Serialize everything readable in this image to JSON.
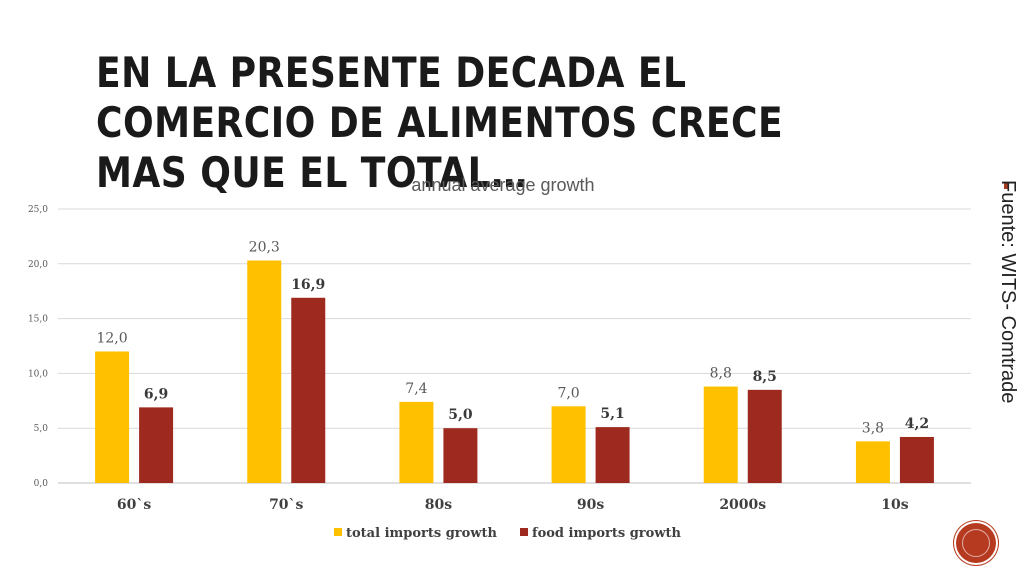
{
  "slide": {
    "title": "EN LA PRESENTE DECADA EL COMERCIO DE ALIMENTOS CRECE MAS QUE EL TOTAL…",
    "source_note": "Fuente: WITS- Comtrade"
  },
  "colors": {
    "total": "#FFC000",
    "food": "#9E2A1F",
    "grid": "#d9d9d9",
    "accent": "#b63a20"
  },
  "chart_data": {
    "type": "bar",
    "title": "annual average growth",
    "categories": [
      "60`s",
      "70`s",
      "80s",
      "90s",
      "2000s",
      "10s"
    ],
    "series": [
      {
        "name": "total imports growth",
        "values": [
          12.0,
          20.3,
          7.4,
          7.0,
          8.8,
          3.8
        ],
        "labels": [
          "12,0",
          "20,3",
          "7,4",
          "7,0",
          "8,8",
          "3,8"
        ]
      },
      {
        "name": "food imports growth",
        "values": [
          6.9,
          16.9,
          5.0,
          5.1,
          8.5,
          4.2
        ],
        "labels": [
          "6,9",
          "16,9",
          "5,0",
          "5,1",
          "8,5",
          "4,2"
        ]
      }
    ],
    "yticks": [
      0,
      5,
      10,
      15,
      20,
      25
    ],
    "ytick_labels": [
      "0,0",
      "5,0",
      "10,0",
      "15,0",
      "20,0",
      "25,0"
    ],
    "ylim": [
      0,
      25
    ],
    "xlabel": "",
    "ylabel": "",
    "legend": "bottom-center",
    "grid": true
  }
}
